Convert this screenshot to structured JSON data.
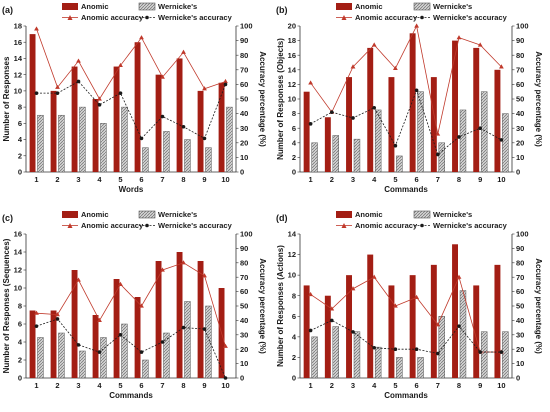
{
  "colors": {
    "anomic": "#a31e14",
    "anomic_line": "#c0392b",
    "wernicke_fill": "#bdbdbd",
    "wernicke_line": "#1a1a1a",
    "axis": "#333333"
  },
  "legend_labels": {
    "anomic": "Anomic",
    "wernicke": "Wernicke's",
    "anomic_accuracy": "Anomic accuracy",
    "wernicke_accuracy": "Wernicke's accuracy"
  },
  "chart_data": [
    {
      "panel": "(a)",
      "type": "bar",
      "categories": [
        "1",
        "2",
        "3",
        "4",
        "5",
        "6",
        "7",
        "8",
        "9",
        "10"
      ],
      "xlabel": "Words",
      "ylabel": "Number of Responses",
      "y2label": "Accuracy percentage (%)",
      "ylim": [
        0,
        18
      ],
      "yticks": [
        0,
        2,
        4,
        6,
        8,
        10,
        12,
        14,
        16,
        18
      ],
      "y2lim": [
        0,
        100
      ],
      "y2ticks": [
        0,
        10,
        20,
        30,
        40,
        50,
        60,
        70,
        80,
        90,
        100
      ],
      "series": [
        {
          "name": "Anomic",
          "kind": "bar",
          "axis": "left",
          "values": [
            17,
            10,
            13,
            9,
            13,
            16,
            12,
            14,
            10,
            11
          ]
        },
        {
          "name": "Wernicke's",
          "kind": "bar",
          "axis": "left",
          "values": [
            7,
            7,
            8,
            6,
            8,
            3,
            5,
            4,
            3,
            8
          ]
        },
        {
          "name": "Anomic accuracy",
          "kind": "line",
          "axis": "right",
          "values": [
            98,
            58,
            76,
            50,
            73,
            92,
            65,
            82,
            57,
            62
          ]
        },
        {
          "name": "Wernicke's accuracy",
          "kind": "line",
          "axis": "right",
          "values": [
            54,
            54,
            62,
            46,
            54,
            23,
            38,
            31,
            23,
            60
          ]
        }
      ]
    },
    {
      "panel": "(b)",
      "type": "bar",
      "categories": [
        "1",
        "2",
        "3",
        "4",
        "5",
        "6",
        "7",
        "8",
        "9",
        "10"
      ],
      "xlabel": "Commands",
      "ylabel": "Number of Responses (Objects)",
      "y2label": "Accuracy percentage (%)",
      "ylim": [
        0,
        20
      ],
      "yticks": [
        0,
        2,
        4,
        6,
        8,
        10,
        12,
        14,
        16,
        18,
        20
      ],
      "y2lim": [
        0,
        100
      ],
      "y2ticks": [
        0,
        10,
        20,
        30,
        40,
        50,
        60,
        70,
        80,
        90,
        100
      ],
      "series": [
        {
          "name": "Anomic",
          "kind": "bar",
          "axis": "left",
          "values": [
            11,
            7.5,
            13,
            17,
            13,
            19,
            13,
            18,
            17,
            14
          ]
        },
        {
          "name": "Wernicke's",
          "kind": "bar",
          "axis": "left",
          "values": [
            4,
            5,
            4.5,
            8.5,
            2.2,
            11,
            4,
            8.5,
            11,
            8
          ]
        },
        {
          "name": "Anomic accuracy",
          "kind": "line",
          "axis": "right",
          "values": [
            61,
            41,
            72,
            87,
            71,
            100,
            26,
            92,
            87,
            72
          ]
        },
        {
          "name": "Wernicke's accuracy",
          "kind": "line",
          "axis": "right",
          "values": [
            33,
            41,
            37,
            44,
            18,
            56,
            12,
            24,
            30,
            22
          ]
        }
      ]
    },
    {
      "panel": "(c)",
      "type": "bar",
      "categories": [
        "1",
        "2",
        "3",
        "4",
        "5",
        "6",
        "7",
        "8",
        "9",
        "10"
      ],
      "xlabel": "Commands",
      "ylabel": "Number of Responses (Sequences)",
      "y2label": "Accuracy percentage (%)",
      "ylim": [
        0,
        16
      ],
      "yticks": [
        0,
        2,
        4,
        6,
        8,
        10,
        12,
        14,
        16
      ],
      "y2lim": [
        0,
        100
      ],
      "y2ticks": [
        0,
        10,
        20,
        30,
        40,
        50,
        60,
        70,
        80,
        90,
        100
      ],
      "series": [
        {
          "name": "Anomic",
          "kind": "bar",
          "axis": "left",
          "values": [
            7.5,
            7.5,
            12,
            7,
            11,
            9,
            13,
            14,
            13,
            10
          ]
        },
        {
          "name": "Wernicke's",
          "kind": "bar",
          "axis": "left",
          "values": [
            4.5,
            5,
            3,
            4.5,
            6,
            2,
            5,
            8.5,
            8,
            0
          ]
        },
        {
          "name": "Anomic accuracy",
          "kind": "line",
          "axis": "right",
          "values": [
            45,
            44,
            68,
            40,
            65,
            50,
            75,
            80,
            71,
            22
          ]
        },
        {
          "name": "Wernicke's accuracy",
          "kind": "line",
          "axis": "right",
          "values": [
            36,
            41,
            23,
            18,
            30,
            18,
            25,
            35,
            34,
            0
          ]
        }
      ]
    },
    {
      "panel": "(d)",
      "type": "bar",
      "categories": [
        "1",
        "2",
        "3",
        "4",
        "5",
        "6",
        "7",
        "8",
        "9",
        "10"
      ],
      "xlabel": "Commands",
      "ylabel": "Number of Responses (Actions)",
      "y2label": "Accuracy percentage (%)",
      "ylim": [
        0,
        14
      ],
      "yticks": [
        0,
        2,
        4,
        6,
        8,
        10,
        12,
        14
      ],
      "y2lim": [
        0,
        100
      ],
      "y2ticks": [
        0,
        10,
        20,
        30,
        40,
        50,
        60,
        70,
        80,
        90,
        100
      ],
      "series": [
        {
          "name": "Anomic",
          "kind": "bar",
          "axis": "left",
          "values": [
            9,
            8,
            10,
            12,
            9,
            10,
            11,
            13,
            9,
            11
          ]
        },
        {
          "name": "Wernicke's",
          "kind": "bar",
          "axis": "left",
          "values": [
            4,
            5,
            4.5,
            3,
            2,
            2,
            6,
            8.5,
            4.5,
            4.5
          ]
        },
        {
          "name": "Anomic accuracy",
          "kind": "line",
          "axis": "right",
          "values": [
            58,
            48,
            62,
            70,
            50,
            56,
            37,
            70,
            18,
            18
          ]
        },
        {
          "name": "Wernicke's accuracy",
          "kind": "line",
          "axis": "right",
          "values": [
            33,
            40,
            32,
            21,
            20,
            20,
            17,
            36,
            18,
            18
          ]
        }
      ]
    }
  ]
}
